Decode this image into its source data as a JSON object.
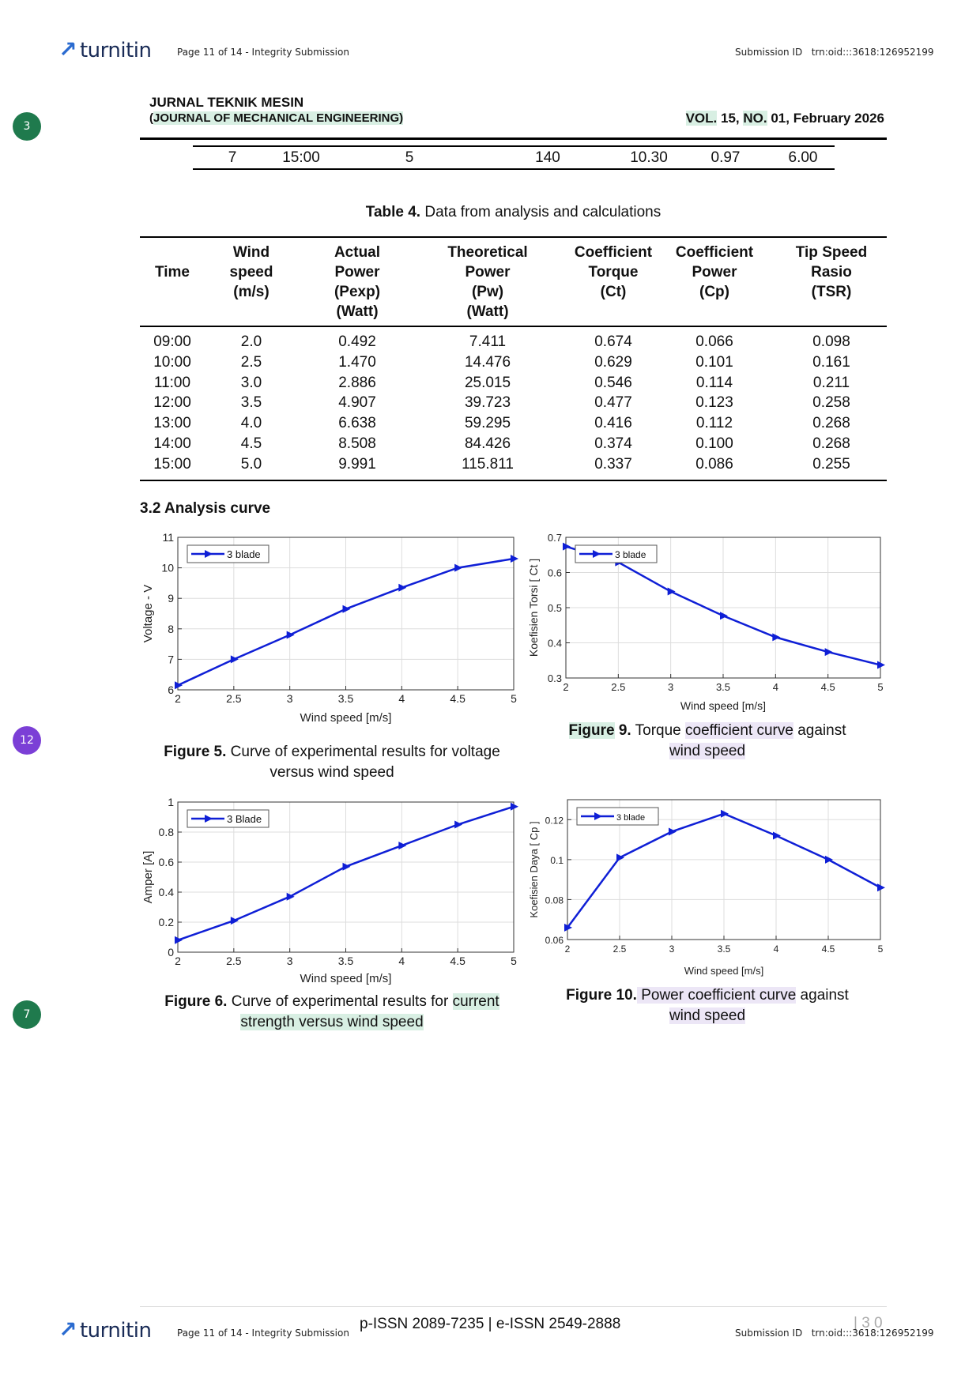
{
  "turnitin": {
    "logo_text": "turnitin",
    "page_info": "Page 11 of 14 - Integrity Submission",
    "submission_label": "Submission ID",
    "submission_id": "trn:oid:::3618:126952199"
  },
  "badges": [
    {
      "label": "3",
      "color": "#1f7a4d"
    },
    {
      "label": "12",
      "color": "#7b3fd6"
    },
    {
      "label": "7",
      "color": "#1f7a4d"
    }
  ],
  "journal": {
    "name": "JURNAL TEKNIK MESIN",
    "subtitle_open": "(",
    "subtitle": "JOURNAL OF MECHANICAL ENGINEERING)",
    "vol_label": "VOL.",
    "vol_num": "15,",
    "no_label": "NO.",
    "no_rest": "01, February 2026"
  },
  "prev_table_row": [
    "7",
    "15:00",
    "5",
    "140",
    "10.30",
    "0.97",
    "6.00"
  ],
  "table4": {
    "caption_label": "Table 4.",
    "caption_text": " Data from analysis and calculations",
    "headers": [
      [
        "Time"
      ],
      [
        "Wind",
        "speed",
        "(m/s)"
      ],
      [
        "Actual",
        "Power",
        "(Pexp)",
        "(Watt)"
      ],
      [
        "Theoretical",
        "Power",
        "(Pw)",
        "(Watt)"
      ],
      [
        "Coefficient",
        "Torque",
        "(Ct)"
      ],
      [
        "Coefficient",
        "Power",
        "(Cp)"
      ],
      [
        "Tip Speed",
        "Rasio",
        "(TSR)"
      ]
    ],
    "rows": [
      [
        "09:00",
        "2.0",
        "0.492",
        "7.411",
        "0.674",
        "0.066",
        "0.098"
      ],
      [
        "10:00",
        "2.5",
        "1.470",
        "14.476",
        "0.629",
        "0.101",
        "0.161"
      ],
      [
        "11:00",
        "3.0",
        "2.886",
        "25.015",
        "0.546",
        "0.114",
        "0.211"
      ],
      [
        "12:00",
        "3.5",
        "4.907",
        "39.723",
        "0.477",
        "0.123",
        "0.258"
      ],
      [
        "13:00",
        "4.0",
        "6.638",
        "59.295",
        "0.416",
        "0.112",
        "0.268"
      ],
      [
        "14:00",
        "4.5",
        "8.508",
        "84.426",
        "0.374",
        "0.100",
        "0.268"
      ],
      [
        "15:00",
        "5.0",
        "9.991",
        "115.811",
        "0.337",
        "0.086",
        "0.255"
      ]
    ]
  },
  "section_title": "3.2 Analysis curve",
  "captions": {
    "fig5": {
      "label": "Figure 5.",
      "text1": " Curve of experimental results for voltage",
      "text2": "versus wind speed"
    },
    "fig6": {
      "label": "Figure 6.",
      "text1": " Curve of experimental results for ",
      "hl1": "current",
      "hl2": "strength versus wind speed"
    },
    "fig9": {
      "label": "Figure",
      "num": " 9.",
      "t1": " Torque ",
      "hl": "coefficient curve",
      "t2": " against",
      "line2": "wind speed"
    },
    "fig10": {
      "label": "Figure",
      "num": " 10.",
      "hl": " Power coefficient curve",
      "t2": " against",
      "line2": "wind speed"
    }
  },
  "footer": {
    "issn": "p-ISSN 2089-7235 | e-ISSN 2549-2888",
    "page_num": "| 3 0"
  },
  "chart_data": [
    {
      "type": "line",
      "title": "",
      "xlabel": "Wind speed [m/s]",
      "ylabel": "Voltage - V",
      "xlim": [
        2,
        5
      ],
      "ylim": [
        6,
        11
      ],
      "xticks": [
        "2",
        "2.5",
        "3",
        "3.5",
        "4",
        "4.5",
        "5"
      ],
      "yticks": [
        "6",
        "7",
        "8",
        "9",
        "10",
        "11"
      ],
      "x": [
        2,
        2.5,
        3,
        3.5,
        4,
        4.5,
        5
      ],
      "series": [
        {
          "name": "3 blade",
          "values": [
            6.15,
            7.0,
            7.8,
            8.65,
            9.35,
            10.0,
            10.3
          ]
        }
      ],
      "grid": true,
      "legend": "top-left",
      "color": "#0f1fd6"
    },
    {
      "type": "line",
      "title": "",
      "xlabel": "Wind speed [m/s]",
      "ylabel": "Amper [A]",
      "xlim": [
        2,
        5
      ],
      "ylim": [
        0,
        1
      ],
      "xticks": [
        "2",
        "2.5",
        "3",
        "3.5",
        "4",
        "4.5",
        "5"
      ],
      "yticks": [
        "0",
        "0.2",
        "0.4",
        "0.6",
        "0.8",
        "1"
      ],
      "x": [
        2,
        2.5,
        3,
        3.5,
        4,
        4.5,
        5
      ],
      "series": [
        {
          "name": "3 Blade",
          "values": [
            0.08,
            0.21,
            0.37,
            0.57,
            0.71,
            0.85,
            0.97
          ]
        }
      ],
      "grid": true,
      "legend": "top-left",
      "color": "#0f1fd6"
    },
    {
      "type": "line",
      "title": "",
      "xlabel": "Wind speed [m/s]",
      "ylabel": "Koefisien Torsi [ Ct ]",
      "xlim": [
        2,
        5
      ],
      "ylim": [
        0.3,
        0.7
      ],
      "xticks": [
        "2",
        "2.5",
        "3",
        "3.5",
        "4",
        "4.5",
        "5"
      ],
      "yticks": [
        "0.3",
        "0.4",
        "0.5",
        "0.6",
        "0.7"
      ],
      "x": [
        2,
        2.5,
        3,
        3.5,
        4,
        4.5,
        5
      ],
      "series": [
        {
          "name": "3 blade",
          "values": [
            0.674,
            0.629,
            0.546,
            0.477,
            0.416,
            0.374,
            0.337
          ]
        }
      ],
      "grid": true,
      "legend": "top-left",
      "color": "#0f1fd6"
    },
    {
      "type": "line",
      "title": "",
      "xlabel": "Wind speed [m/s]",
      "ylabel": "Koefisien Daya [ Cp ]",
      "xlim": [
        2,
        5
      ],
      "ylim": [
        0.06,
        0.13
      ],
      "xticks": [
        "2",
        "2.5",
        "3",
        "3.5",
        "4",
        "4.5",
        "5"
      ],
      "yticks": [
        "0.06",
        "0.08",
        "0.1",
        "0.12"
      ],
      "ytickvals": [
        0.06,
        0.08,
        0.1,
        0.12
      ],
      "x": [
        2,
        2.5,
        3,
        3.5,
        4,
        4.5,
        5
      ],
      "series": [
        {
          "name": "3 blade",
          "values": [
            0.066,
            0.101,
            0.114,
            0.123,
            0.112,
            0.1,
            0.086
          ]
        }
      ],
      "grid": true,
      "legend": "top-left",
      "color": "#0f1fd6"
    }
  ]
}
